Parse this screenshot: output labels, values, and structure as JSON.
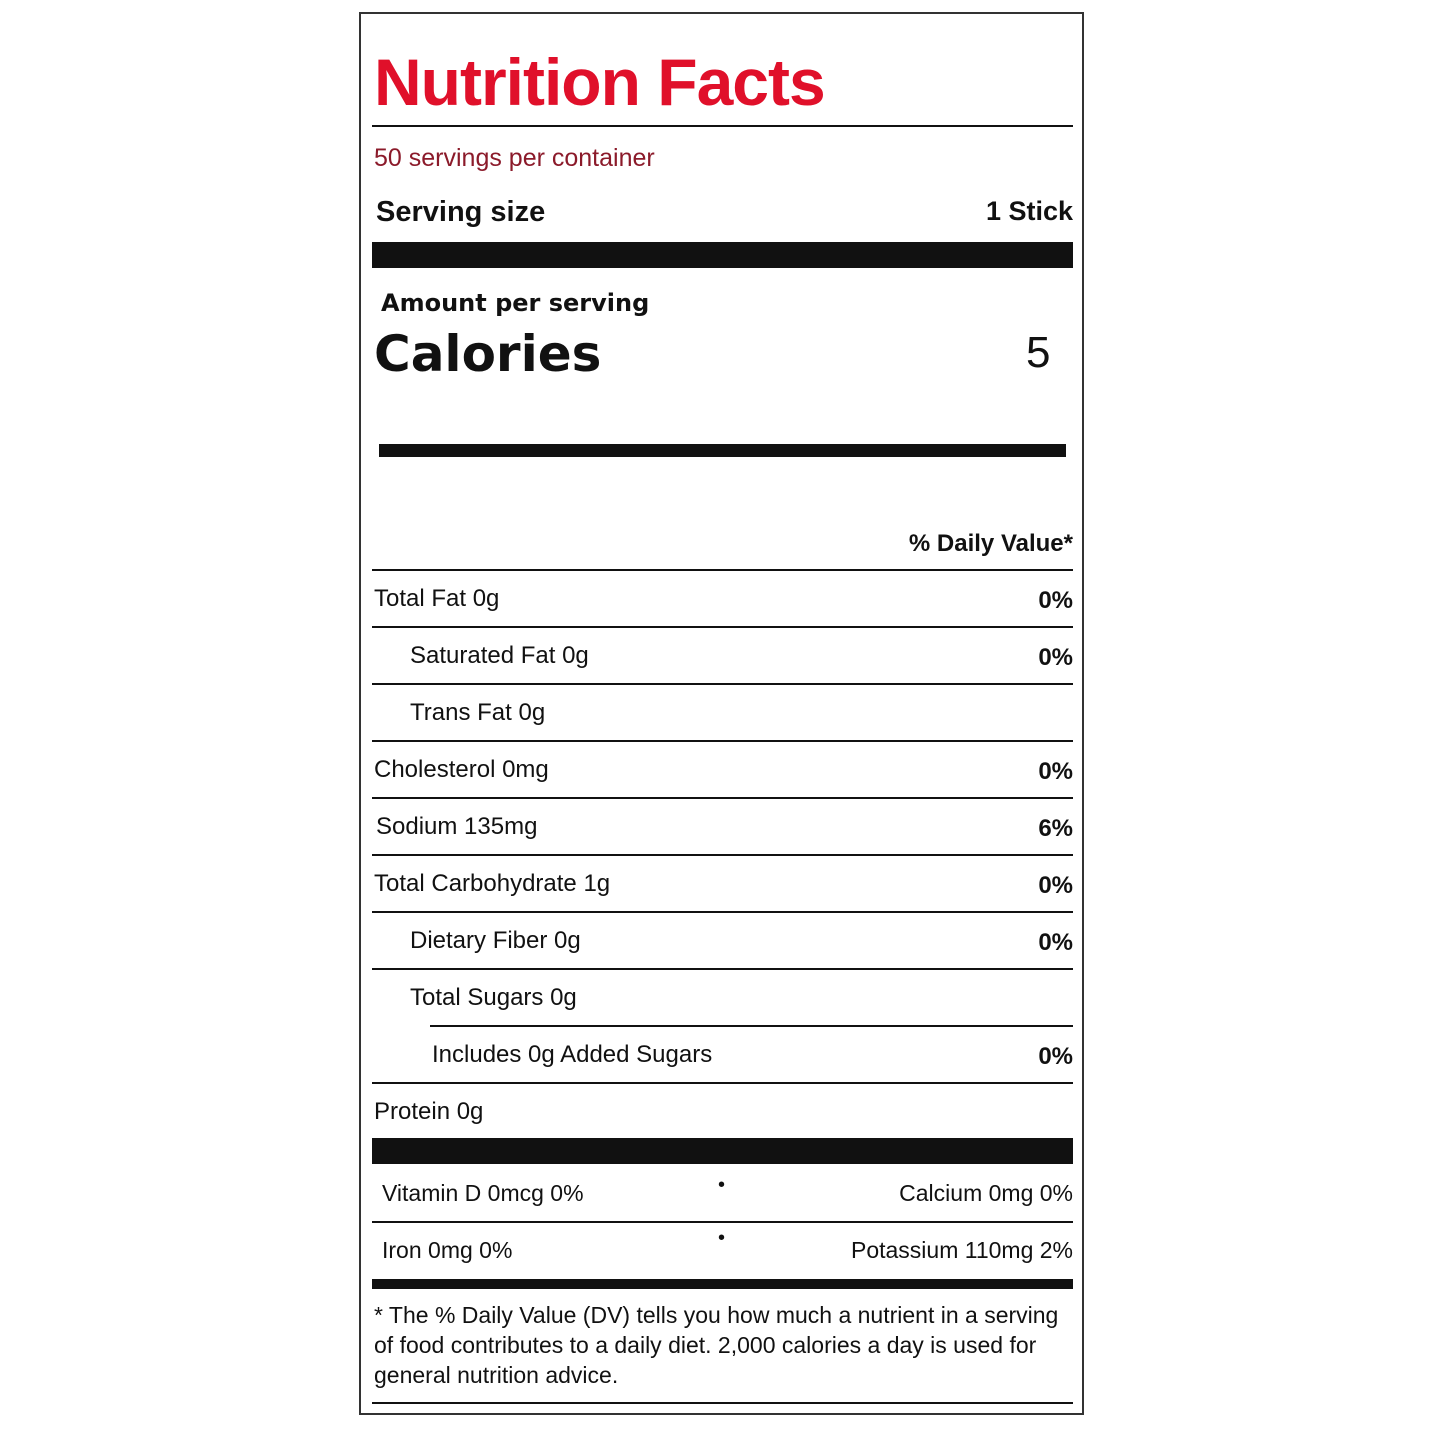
{
  "title": "Nutrition Facts",
  "servings_per_container": "50 servings per container",
  "serving_size": {
    "label": "Serving size",
    "value": "1 Stick"
  },
  "amount_per_serving": "Amount per serving",
  "calories": {
    "label": "Calories",
    "value": "5"
  },
  "daily_value_header": "% Daily Value*",
  "nutrients": [
    {
      "label": "Total Fat 0g",
      "dv": "0%"
    },
    {
      "label": "Saturated Fat 0g",
      "dv": "0%"
    },
    {
      "label": "Trans Fat 0g",
      "dv": ""
    },
    {
      "label": "Cholesterol 0mg",
      "dv": "0%"
    },
    {
      "label": "Sodium 135mg",
      "dv": "6%"
    },
    {
      "label": "Total Carbohydrate 1g",
      "dv": "0%"
    },
    {
      "label": "Dietary Fiber 0g",
      "dv": "0%"
    },
    {
      "label": "Total Sugars 0g",
      "dv": ""
    },
    {
      "label": "Includes 0g Added Sugars",
      "dv": "0%"
    },
    {
      "label": "Protein 0g",
      "dv": ""
    }
  ],
  "vitamins": [
    {
      "left": "Vitamin D 0mcg 0%",
      "right": "Calcium 0mg 0%"
    },
    {
      "left": "Iron 0mg 0%",
      "right": "Potassium 110mg 2%"
    }
  ],
  "footnote": "* The % Daily Value (DV) tells you how much a nutrient in a serving of food contributes to a daily diet. 2,000 calories a day is used for general nutrition advice.",
  "colors": {
    "title": "#e0102a",
    "servings": "#8b1a2a"
  }
}
